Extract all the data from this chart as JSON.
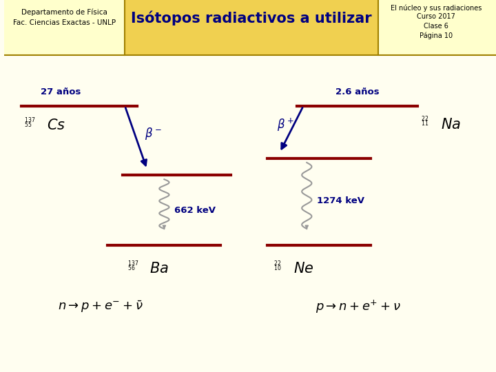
{
  "bg_color": "#fffef0",
  "header_left_bg": "#ffffcc",
  "header_center_bg": "#f0d050",
  "header_right_bg": "#ffffcc",
  "left_header_text": [
    "Departamento de Física",
    "Fac. Ciencias Exactas - UNLP"
  ],
  "center_header_text": "Isótopos radiactivos a utilizar",
  "right_header_text": [
    "El núcleo y sus radiaciones",
    "Curso 2017",
    "Clase 6",
    "Página 10"
  ],
  "header_border_color": "#a08000",
  "level_color": "#8b0000",
  "arrow_color": "#000080",
  "text_color_blue": "#000080",
  "text_color_dark": "#000000",
  "wavy_color": "#999999"
}
